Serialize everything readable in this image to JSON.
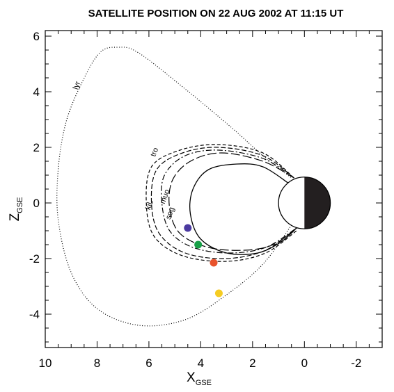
{
  "chart_data": {
    "type": "line",
    "title": "SATELLITE POSITION ON  22 AUG 2002 AT 11:15 UT",
    "xlabel": {
      "main": "X",
      "sub": "GSE"
    },
    "ylabel": {
      "main": "Z",
      "sub": "GSE"
    },
    "xlim": [
      10,
      -3
    ],
    "ylim": [
      -5.2,
      6.2
    ],
    "x_ticks": [
      "10",
      "8",
      "6",
      "4",
      "2",
      "0",
      "-2"
    ],
    "y_ticks": [
      "6",
      "4",
      "2",
      "0",
      "-2",
      "-4"
    ],
    "grid": false,
    "series": [
      {
        "name": "lyr",
        "dash": "dotted",
        "label_at": [
          8.7,
          4.2
        ],
        "label_angle": -70,
        "points": [
          [
            0.5,
            -0.8
          ],
          [
            1.6,
            -2.2
          ],
          [
            3.0,
            -3.3
          ],
          [
            4.6,
            -4.2
          ],
          [
            6.4,
            -4.4
          ],
          [
            8.0,
            -3.8
          ],
          [
            9.0,
            -2.5
          ],
          [
            9.5,
            -0.6
          ],
          [
            9.5,
            1.2
          ],
          [
            9.2,
            2.9
          ],
          [
            8.6,
            4.3
          ],
          [
            7.9,
            5.4
          ],
          [
            7.2,
            5.6
          ],
          [
            6.4,
            5.4
          ],
          [
            4.6,
            4.1
          ],
          [
            2.8,
            2.7
          ],
          [
            1.6,
            1.7
          ],
          [
            0.5,
            0.9
          ]
        ]
      },
      {
        "name": "tro",
        "dash": "short-dash",
        "label_at": [
          5.7,
          1.8
        ],
        "label_angle": -70,
        "points": [
          [
            0.4,
            0.9
          ],
          [
            1.6,
            1.8
          ],
          [
            3.3,
            2.1
          ],
          [
            4.8,
            1.9
          ],
          [
            5.9,
            1.3
          ],
          [
            6.1,
            0.0
          ],
          [
            5.8,
            -1.2
          ],
          [
            4.7,
            -1.9
          ],
          [
            3.0,
            -2.1
          ],
          [
            1.5,
            -1.8
          ],
          [
            0.3,
            -1.0
          ]
        ]
      },
      {
        "name": "kiL",
        "dash": "dashed",
        "label_at": [
          5.9,
          -0.1
        ],
        "label_angle": -70,
        "points": [
          [
            0.4,
            0.9
          ],
          [
            1.6,
            1.7
          ],
          [
            3.3,
            2.0
          ],
          [
            4.7,
            1.8
          ],
          [
            5.7,
            1.2
          ],
          [
            5.9,
            0.0
          ],
          [
            5.6,
            -1.1
          ],
          [
            4.6,
            -1.8
          ],
          [
            3.0,
            -2.0
          ],
          [
            1.5,
            -1.7
          ],
          [
            0.3,
            -0.9
          ]
        ]
      },
      {
        "name": "muo",
        "dash": "dash-dot",
        "label_at": [
          5.3,
          0.2
        ],
        "label_angle": -70,
        "points": [
          [
            0.4,
            0.9
          ],
          [
            1.6,
            1.6
          ],
          [
            3.3,
            1.9
          ],
          [
            4.6,
            1.7
          ],
          [
            5.4,
            1.0
          ],
          [
            5.5,
            0.0
          ],
          [
            5.2,
            -1.0
          ],
          [
            4.3,
            -1.6
          ],
          [
            2.9,
            -1.8
          ],
          [
            1.5,
            -1.6
          ],
          [
            0.3,
            -0.9
          ]
        ]
      },
      {
        "name": "sog",
        "dash": "long-dash",
        "label_at": [
          5.1,
          -0.4
        ],
        "label_angle": -70,
        "points": [
          [
            0.4,
            0.9
          ],
          [
            1.6,
            1.5
          ],
          [
            3.2,
            1.8
          ],
          [
            4.4,
            1.5
          ],
          [
            5.1,
            0.8
          ],
          [
            5.2,
            -0.2
          ],
          [
            4.8,
            -1.1
          ],
          [
            3.7,
            -1.6
          ],
          [
            2.3,
            -1.7
          ],
          [
            1.2,
            -1.5
          ],
          [
            0.3,
            -0.9
          ]
        ]
      },
      {
        "name": "",
        "dash": "solid",
        "label_at": null,
        "label_angle": 0,
        "points": [
          [
            0.6,
            0.7
          ],
          [
            1.6,
            1.3
          ],
          [
            2.6,
            1.4
          ],
          [
            3.7,
            1.2
          ],
          [
            4.3,
            0.5
          ],
          [
            4.4,
            -0.4
          ],
          [
            4.0,
            -1.3
          ],
          [
            3.0,
            -1.8
          ],
          [
            1.8,
            -1.8
          ],
          [
            0.9,
            -1.4
          ],
          [
            0.3,
            -0.9
          ]
        ]
      }
    ],
    "satellites": [
      {
        "x": 4.5,
        "z": -0.9,
        "color": "#4b3aa0"
      },
      {
        "x": 4.1,
        "z": -1.5,
        "color": "#18a048"
      },
      {
        "x": 3.5,
        "z": -2.15,
        "color": "#e8532c"
      },
      {
        "x": 3.3,
        "z": -3.25,
        "color": "#f5cc22"
      }
    ],
    "earth": {
      "x": 0,
      "z": 0,
      "r": 1,
      "day_color": "#ffffff",
      "night_color": "#231f20"
    }
  }
}
